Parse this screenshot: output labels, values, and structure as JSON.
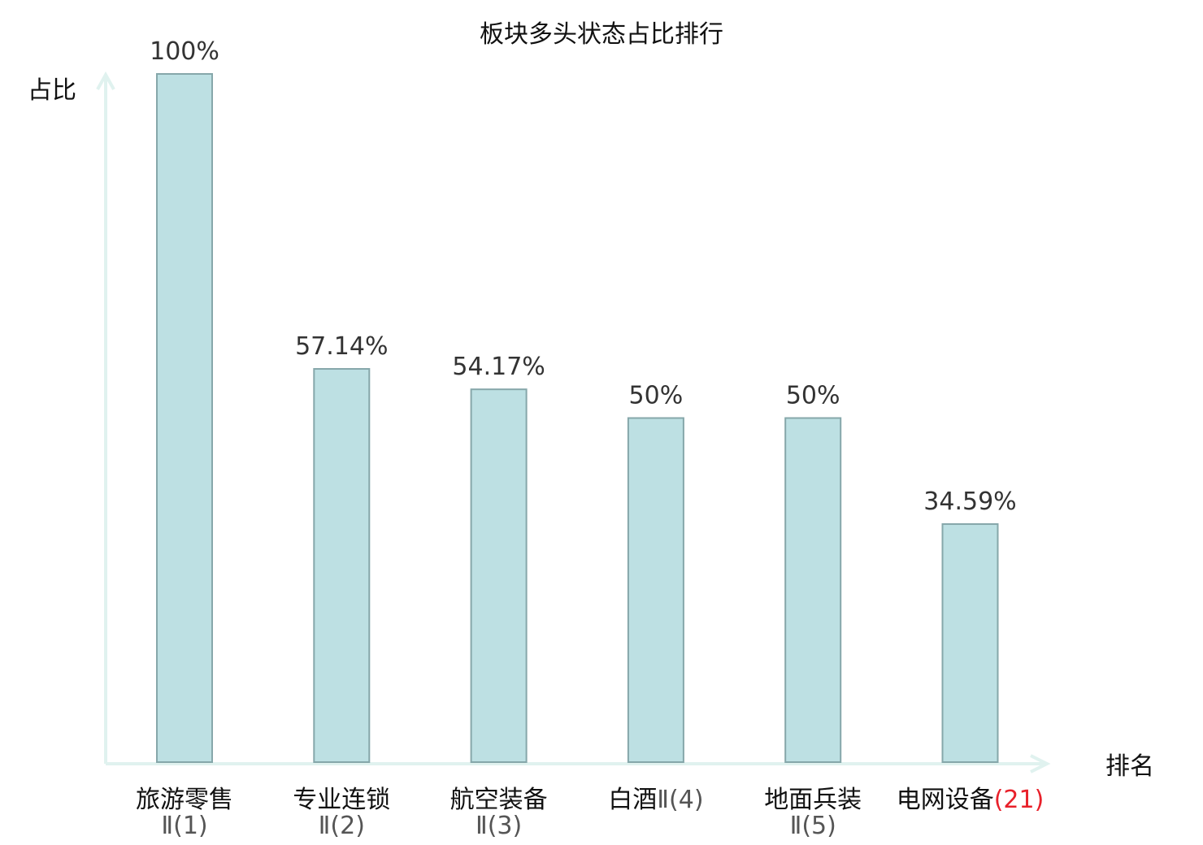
{
  "chart_data": {
    "type": "bar",
    "title": "板块多头状态占比排行",
    "ylabel": "占比",
    "xlabel": "排名",
    "ylim": [
      0,
      100
    ],
    "grid": false,
    "categories": [
      {
        "name": "旅游零售",
        "suffix": "Ⅱ(1)",
        "two_line": true,
        "highlight": false
      },
      {
        "name": "专业连锁",
        "suffix": "Ⅱ(2)",
        "two_line": true,
        "highlight": false
      },
      {
        "name": "航空装备",
        "suffix": "Ⅱ(3)",
        "two_line": true,
        "highlight": false
      },
      {
        "name": "白酒",
        "suffix": "Ⅱ(4)",
        "two_line": false,
        "highlight": false
      },
      {
        "name": "地面兵装",
        "suffix": "Ⅱ(5)",
        "two_line": true,
        "highlight": false
      },
      {
        "name": "电网设备",
        "suffix": "(21)",
        "two_line": false,
        "highlight": true
      }
    ],
    "values": [
      100,
      57.14,
      54.17,
      50,
      50,
      34.59
    ],
    "value_labels": [
      "100%",
      "57.14%",
      "54.17%",
      "50%",
      "50%",
      "34.59%"
    ]
  },
  "colors": {
    "bar_fill": "#bde0e3",
    "bar_stroke": "#86a7aa",
    "axis": "#e0f2ef",
    "highlight": "#e8202a",
    "text": "#111111",
    "sub_text": "#555555"
  }
}
